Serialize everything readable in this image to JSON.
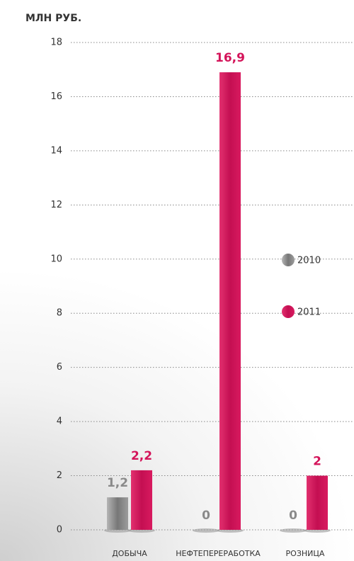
{
  "chart_data": {
    "type": "bar",
    "y_label": "МЛН РУБ.",
    "categories": [
      "ДОБЫЧА",
      "НЕФТЕПЕРЕРАБОТКА",
      "РОЗНИЦА"
    ],
    "series": [
      {
        "name": "2010",
        "color": "#8a8a8a",
        "values": [
          1.2,
          0,
          0
        ],
        "value_labels": [
          "1,2",
          "0",
          "0"
        ]
      },
      {
        "name": "2011",
        "color": "#d4145a",
        "values": [
          2.2,
          16.9,
          2
        ],
        "value_labels": [
          "2,2",
          "16,9",
          "2"
        ]
      }
    ],
    "ylim": [
      0,
      18
    ],
    "yticks": [
      0,
      2,
      4,
      6,
      8,
      10,
      12,
      14,
      16,
      18
    ],
    "grid": true,
    "legend": "right"
  }
}
